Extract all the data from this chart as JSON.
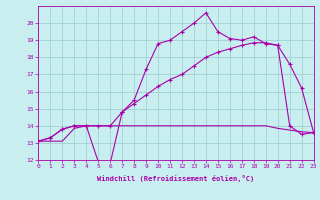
{
  "xlabel": "Windchill (Refroidissement éolien,°C)",
  "xlim": [
    0,
    23
  ],
  "ylim": [
    12,
    21
  ],
  "yticks": [
    12,
    13,
    14,
    15,
    16,
    17,
    18,
    19,
    20
  ],
  "xticks": [
    0,
    1,
    2,
    3,
    4,
    5,
    6,
    7,
    8,
    9,
    10,
    11,
    12,
    13,
    14,
    15,
    16,
    17,
    18,
    19,
    20,
    21,
    22,
    23
  ],
  "bg_color": "#c8eef0",
  "line_color": "#aa00aa",
  "grid_color": "#99cccc",
  "line1_x": [
    0,
    1,
    2,
    3,
    4,
    5,
    6,
    7,
    8,
    9,
    10,
    11,
    12,
    13,
    14,
    15,
    16,
    17,
    18,
    19,
    20,
    21,
    22,
    23
  ],
  "line1_y": [
    13.1,
    13.3,
    13.8,
    14.0,
    14.0,
    11.9,
    11.8,
    14.8,
    15.5,
    17.3,
    18.8,
    19.0,
    19.5,
    20.0,
    20.6,
    19.5,
    19.1,
    19.0,
    19.2,
    18.8,
    18.7,
    14.0,
    13.5,
    13.6
  ],
  "line2_x": [
    0,
    1,
    2,
    3,
    4,
    5,
    6,
    7,
    8,
    9,
    10,
    11,
    12,
    13,
    14,
    15,
    16,
    17,
    18,
    19,
    20,
    21,
    22,
    23
  ],
  "line2_y": [
    13.1,
    13.3,
    13.8,
    14.0,
    14.0,
    14.0,
    14.0,
    14.8,
    15.3,
    15.8,
    16.3,
    16.7,
    17.0,
    17.5,
    18.0,
    18.3,
    18.5,
    18.7,
    18.85,
    18.85,
    18.7,
    17.6,
    16.2,
    13.6
  ],
  "line3_x": [
    0,
    1,
    2,
    3,
    4,
    5,
    6,
    7,
    8,
    9,
    10,
    11,
    12,
    13,
    14,
    15,
    16,
    17,
    18,
    19,
    20,
    21,
    22,
    23
  ],
  "line3_y": [
    13.1,
    13.1,
    13.1,
    13.85,
    14.0,
    14.0,
    14.0,
    14.0,
    14.0,
    14.0,
    14.0,
    14.0,
    14.0,
    14.0,
    14.0,
    14.0,
    14.0,
    14.0,
    14.0,
    14.0,
    13.85,
    13.75,
    13.65,
    13.6
  ]
}
